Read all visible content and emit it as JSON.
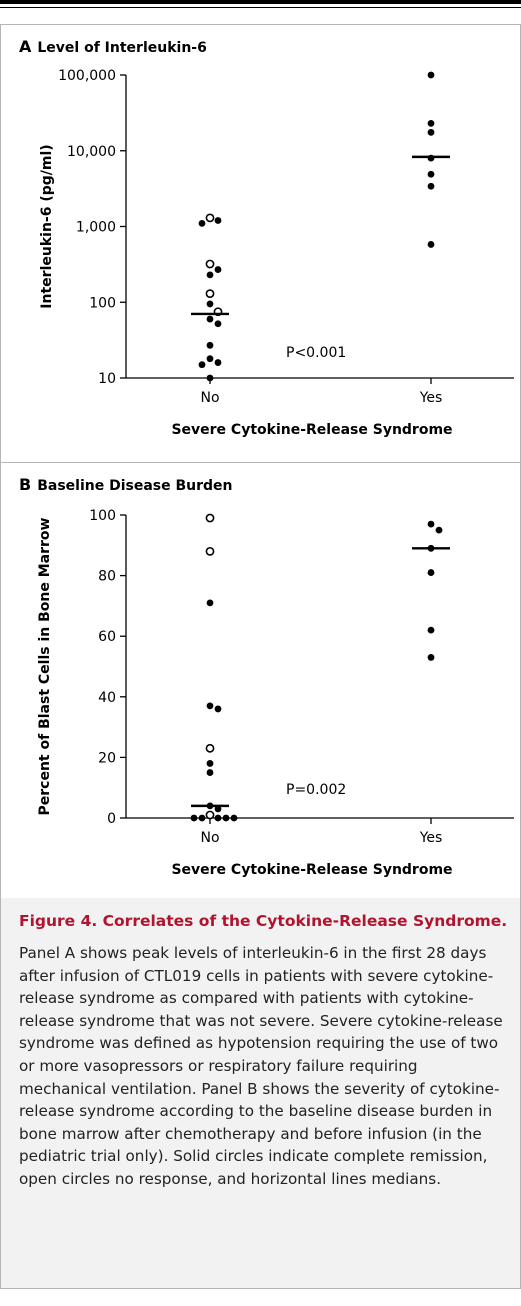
{
  "chart_data": [
    {
      "type": "scatter",
      "panel_letter": "A",
      "title": "Level of Interleukin-6",
      "ylabel": "Interleukin-6 (pg/ml)",
      "xlabel": "Severe Cytokine-Release Syndrome",
      "categories": [
        "No",
        "Yes"
      ],
      "y_scale": "log",
      "ylim": [
        10,
        100000
      ],
      "y_ticks": [
        10,
        100,
        1000,
        10000,
        100000
      ],
      "y_tick_labels": [
        "10",
        "100",
        "1,000",
        "10,000",
        "100,000"
      ],
      "annotation": "P<0.001",
      "medians": [
        70,
        8300
      ],
      "series": [
        {
          "values": [
            {
              "x": "No",
              "y": 1300,
              "open": true
            },
            {
              "x": "No",
              "y": 1200,
              "open": false
            },
            {
              "x": "No",
              "y": 1100,
              "open": false
            },
            {
              "x": "No",
              "y": 320,
              "open": true
            },
            {
              "x": "No",
              "y": 270,
              "open": false
            },
            {
              "x": "No",
              "y": 230,
              "open": false
            },
            {
              "x": "No",
              "y": 130,
              "open": true
            },
            {
              "x": "No",
              "y": 95,
              "open": false
            },
            {
              "x": "No",
              "y": 75,
              "open": true
            },
            {
              "x": "No",
              "y": 60,
              "open": false
            },
            {
              "x": "No",
              "y": 52,
              "open": false
            },
            {
              "x": "No",
              "y": 27,
              "open": false
            },
            {
              "x": "No",
              "y": 18,
              "open": false
            },
            {
              "x": "No",
              "y": 16,
              "open": false
            },
            {
              "x": "No",
              "y": 15,
              "open": false
            },
            {
              "x": "No",
              "y": 10,
              "open": false
            },
            {
              "x": "Yes",
              "y": 100000,
              "open": false
            },
            {
              "x": "Yes",
              "y": 23000,
              "open": false
            },
            {
              "x": "Yes",
              "y": 17500,
              "open": false
            },
            {
              "x": "Yes",
              "y": 8000,
              "open": false
            },
            {
              "x": "Yes",
              "y": 4900,
              "open": false
            },
            {
              "x": "Yes",
              "y": 3400,
              "open": false
            },
            {
              "x": "Yes",
              "y": 580,
              "open": false
            }
          ]
        }
      ]
    },
    {
      "type": "scatter",
      "panel_letter": "B",
      "title": "Baseline Disease Burden",
      "ylabel": "Percent of Blast Cells in Bone Marrow",
      "xlabel": "Severe Cytokine-Release Syndrome",
      "categories": [
        "No",
        "Yes"
      ],
      "y_scale": "linear",
      "ylim": [
        0,
        100
      ],
      "y_ticks": [
        0,
        20,
        40,
        60,
        80,
        100
      ],
      "y_tick_labels": [
        "0",
        "20",
        "40",
        "60",
        "80",
        "100"
      ],
      "annotation": "P=0.002",
      "medians": [
        4,
        89
      ],
      "series": [
        {
          "values": [
            {
              "x": "No",
              "y": 99,
              "open": true
            },
            {
              "x": "No",
              "y": 88,
              "open": true
            },
            {
              "x": "No",
              "y": 71,
              "open": false
            },
            {
              "x": "No",
              "y": 37,
              "open": false
            },
            {
              "x": "No",
              "y": 36,
              "open": false
            },
            {
              "x": "No",
              "y": 23,
              "open": true
            },
            {
              "x": "No",
              "y": 18,
              "open": false
            },
            {
              "x": "No",
              "y": 15,
              "open": false
            },
            {
              "x": "No",
              "y": 4,
              "open": false
            },
            {
              "x": "No",
              "y": 3,
              "open": false
            },
            {
              "x": "No",
              "y": 1,
              "open": true
            },
            {
              "x": "No",
              "y": 0,
              "open": false
            },
            {
              "x": "No",
              "y": 0,
              "open": false
            },
            {
              "x": "No",
              "y": 0,
              "open": false
            },
            {
              "x": "No",
              "y": 0,
              "open": false
            },
            {
              "x": "No",
              "y": 0,
              "open": false
            },
            {
              "x": "Yes",
              "y": 97,
              "open": false
            },
            {
              "x": "Yes",
              "y": 95,
              "open": false
            },
            {
              "x": "Yes",
              "y": 89,
              "open": false
            },
            {
              "x": "Yes",
              "y": 81,
              "open": false
            },
            {
              "x": "Yes",
              "y": 62,
              "open": false
            },
            {
              "x": "Yes",
              "y": 53,
              "open": false
            }
          ]
        }
      ]
    }
  ],
  "caption": {
    "title": "Figure 4. Correlates of the Cytokine-Release Syndrome.",
    "text": "Panel A shows peak levels of interleukin-6 in the first 28 days after infusion of CTL019 cells in patients with severe cytokine-release syndrome as compared with patients with cytokine-release syndrome that was not severe. Severe cytokine-release syndrome was defined as hypotension requiring the use of two or more vaso­pressors or respiratory failure requiring mechanical ventilation. Panel B shows the severity of cytokine-re­lease syndrome according to the baseline disease bur­den in bone marrow after chemotherapy and before in­fusion (in the pediatric trial only). Solid circles indicate complete remission, open circles no response, and horizontal lines medians."
  }
}
